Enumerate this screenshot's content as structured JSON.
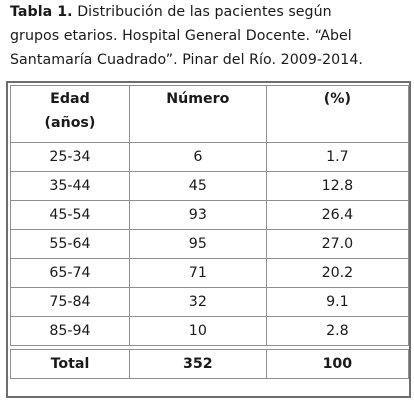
{
  "caption": {
    "label": "Tabla 1.",
    "line1": "Distribución de las pacientes según",
    "line2": "grupos etarios. Hospital General Docente. “Abel",
    "line3": "Santamaría Cuadrado”. Pinar del Río. 2009-2014."
  },
  "table": {
    "headers": {
      "age_line1": "Edad",
      "age_line2": "(años)",
      "number": "Número",
      "percent": "(%)"
    },
    "rows": [
      {
        "age": "25-34",
        "number": "6",
        "percent": "1.7"
      },
      {
        "age": "35-44",
        "number": "45",
        "percent": "12.8"
      },
      {
        "age": "45-54",
        "number": "93",
        "percent": "26.4"
      },
      {
        "age": "55-64",
        "number": "95",
        "percent": "27.0"
      },
      {
        "age": "65-74",
        "number": "71",
        "percent": "20.2"
      },
      {
        "age": "75-84",
        "number": "32",
        "percent": "9.1"
      },
      {
        "age": "85-94",
        "number": "10",
        "percent": "2.8"
      }
    ],
    "total": {
      "label": "Total",
      "number": "352",
      "percent": "100"
    }
  }
}
